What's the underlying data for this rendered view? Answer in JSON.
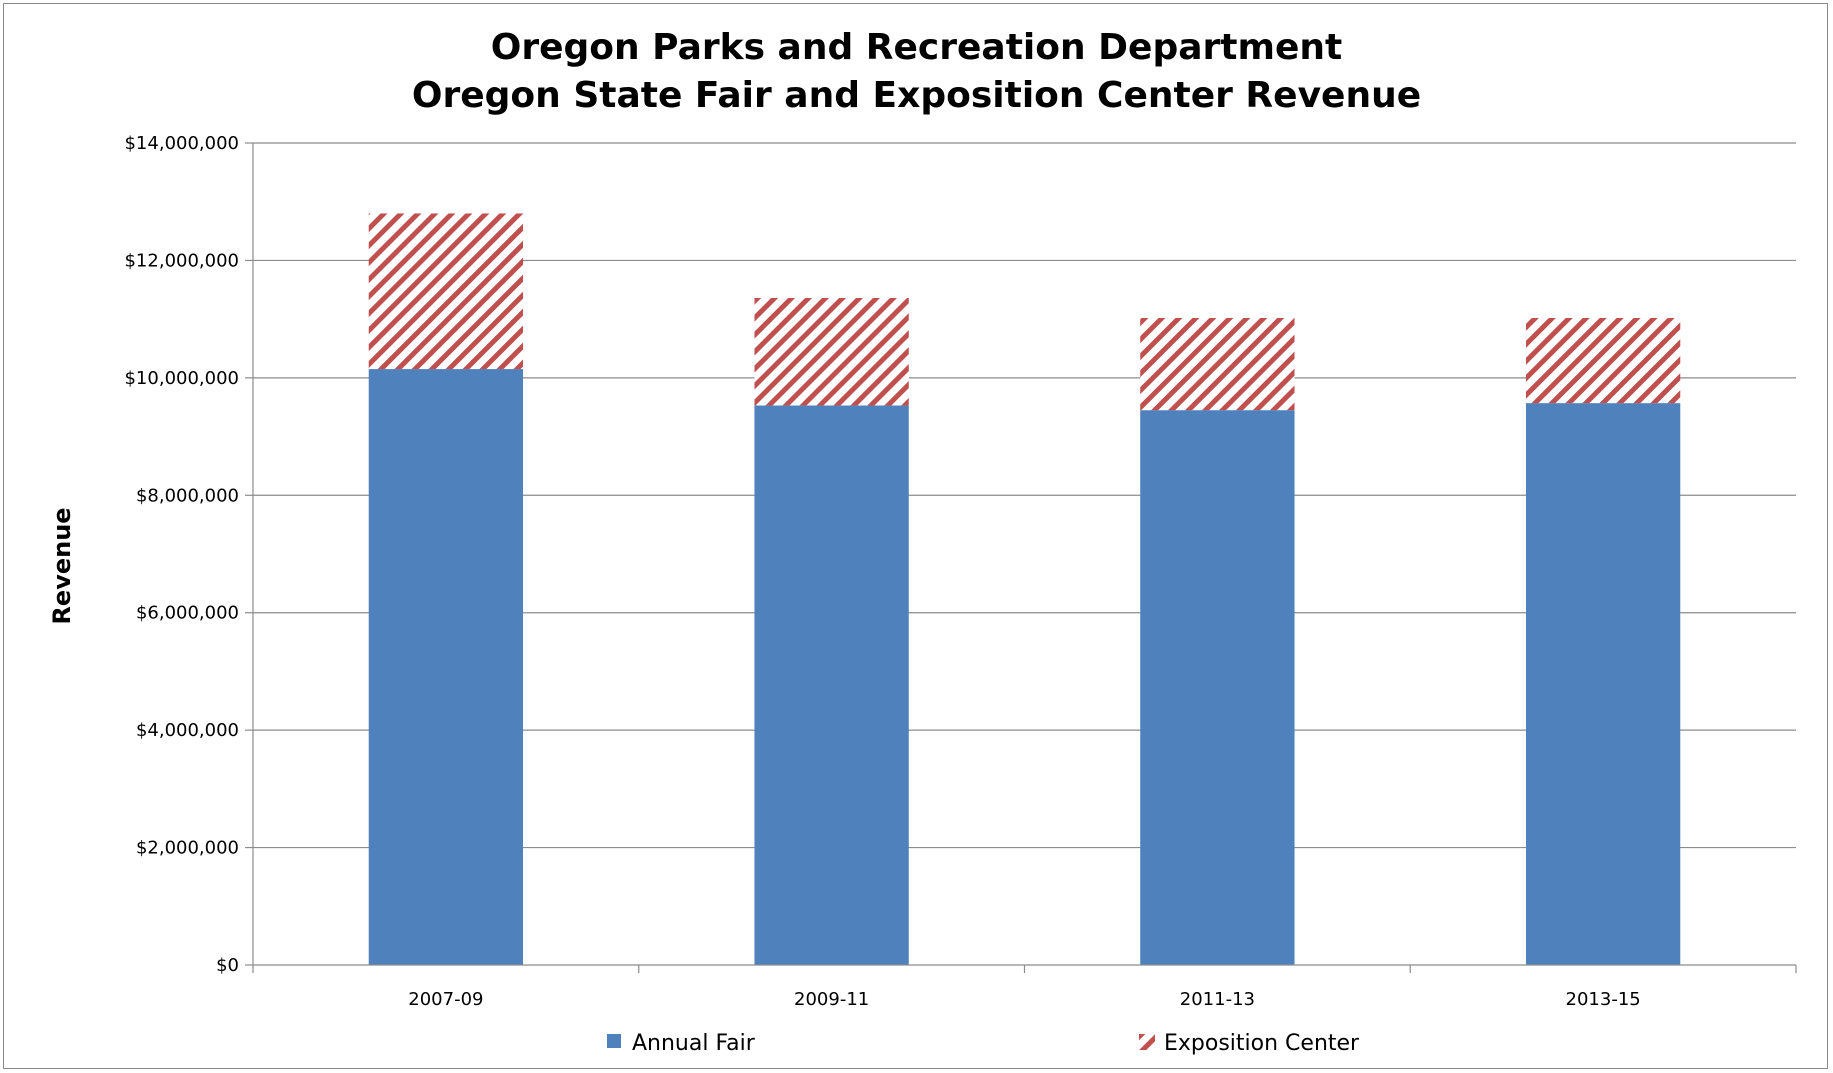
{
  "chart_data": {
    "type": "bar",
    "stacked": true,
    "title": "Oregon Parks and Recreation Department",
    "subtitle": "Oregon State Fair and Exposition Center Revenue",
    "xlabel": "",
    "ylabel": "Revenue",
    "categories": [
      "2007-09",
      "2009-11",
      "2011-13",
      "2013-15"
    ],
    "series": [
      {
        "name": "Annual Fair",
        "values": [
          10150000,
          9530000,
          9450000,
          9570000
        ],
        "color": "#4f81bd",
        "fill": "solid"
      },
      {
        "name": "Exposition Center",
        "values": [
          2650000,
          1830000,
          1570000,
          1450000
        ],
        "color": "#c0504d",
        "fill": "diagonal-hatch"
      }
    ],
    "ylim": [
      0,
      14000000
    ],
    "yticks": [
      0,
      2000000,
      4000000,
      6000000,
      8000000,
      10000000,
      12000000,
      14000000
    ],
    "ytick_labels": [
      "$0",
      "$2,000,000",
      "$4,000,000",
      "$6,000,000",
      "$8,000,000",
      "$10,000,000",
      "$12,000,000",
      "$14,000,000"
    ],
    "grid": "horizontal",
    "legend": "bottom"
  }
}
